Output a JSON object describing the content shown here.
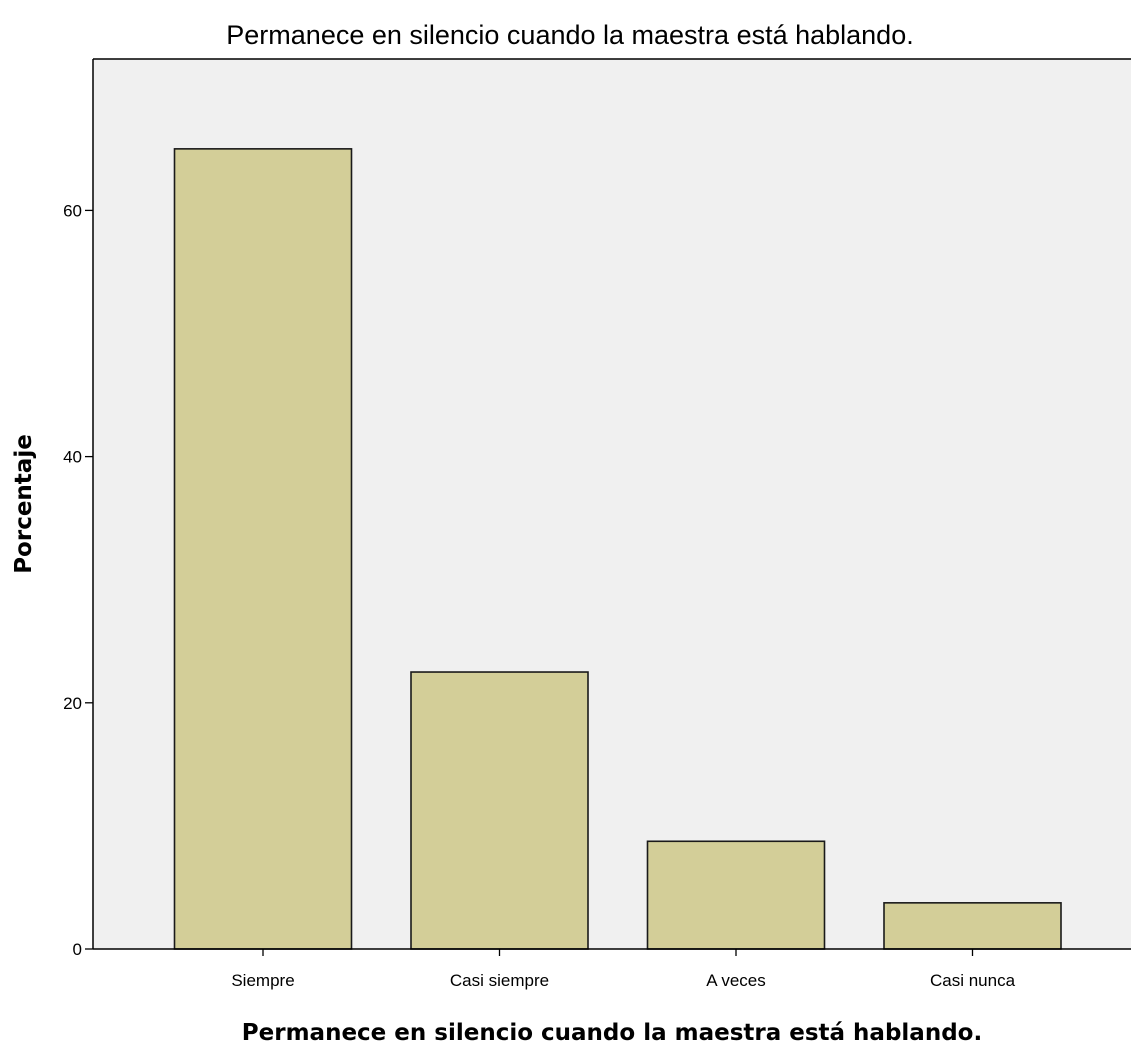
{
  "chart_data": {
    "type": "bar",
    "title": "Permanece en silencio cuando la maestra está hablando.",
    "xlabel": "Permanece en silencio cuando la maestra está hablando.",
    "ylabel": "Porcentaje",
    "categories": [
      "Siempre",
      "Casi siempre",
      "A veces",
      "Casi nunca"
    ],
    "values": [
      65.0,
      22.5,
      8.75,
      3.75
    ],
    "ylim": [
      0,
      72.3
    ],
    "yticks": [
      0,
      20,
      40,
      60
    ],
    "grid": false,
    "colors": {
      "bar_fill": "#d3ce98",
      "bar_stroke": "#1a1a1a",
      "plot_background": "#f0f0f0",
      "axis": "#000000"
    }
  }
}
